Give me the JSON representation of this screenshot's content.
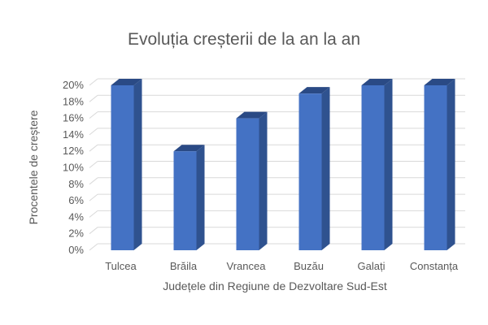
{
  "chart_data": {
    "type": "bar",
    "title": "Evoluția creșterii de la an la  an",
    "xlabel": "Județele din Regiune de Dezvoltare Sud-Est",
    "ylabel": "Procentele de creștere",
    "categories": [
      "Tulcea",
      "Brăila",
      "Vrancea",
      "Buzău",
      "Galați",
      "Constanța"
    ],
    "values": [
      20,
      12,
      16,
      19,
      20,
      20
    ],
    "ylim": [
      0,
      20
    ],
    "yticks": [
      "0%",
      "2%",
      "4%",
      "6%",
      "8%",
      "10%",
      "12%",
      "14%",
      "16%",
      "18%",
      "20%"
    ],
    "grid": true,
    "style": "3d-column",
    "colors": {
      "front": "#4472c4",
      "side": "#2f528f",
      "top": "#2a4a85"
    }
  }
}
